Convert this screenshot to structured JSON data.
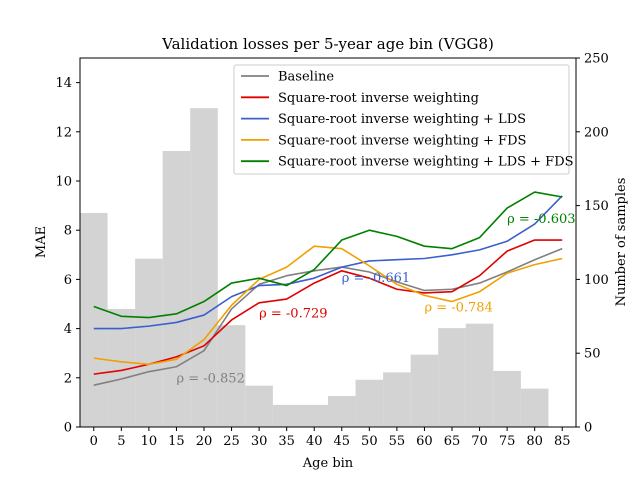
{
  "chart_data": {
    "type": "line",
    "title": "Validation losses per 5-year age bin (VGG8)",
    "xlabel": "Age bin",
    "ylabel": "MAE",
    "y2label": "Number of samples",
    "categories": [
      "0",
      "5",
      "10",
      "15",
      "20",
      "25",
      "30",
      "35",
      "40",
      "45",
      "50",
      "55",
      "60",
      "65",
      "70",
      "75",
      "80",
      "85"
    ],
    "x": [
      0,
      5,
      10,
      15,
      20,
      25,
      30,
      35,
      40,
      45,
      50,
      55,
      60,
      65,
      70,
      75,
      80,
      85
    ],
    "xlim": [
      -2.5,
      87.5
    ],
    "ylim": [
      0,
      15
    ],
    "y2lim": [
      0,
      250
    ],
    "yticks": [
      0,
      2,
      4,
      6,
      8,
      10,
      12,
      14
    ],
    "y2ticks": [
      0,
      50,
      100,
      150,
      200,
      250
    ],
    "grid": false,
    "legend_position": "upper-right",
    "histogram": {
      "color": "#d3d3d3",
      "counts": [
        145,
        80,
        114,
        187,
        216,
        69,
        28,
        15,
        15,
        21,
        32,
        37,
        49,
        67,
        70,
        38,
        26,
        0
      ]
    },
    "series": [
      {
        "name": "Baseline",
        "color": "#808080",
        "values": [
          1.7,
          1.95,
          2.25,
          2.45,
          3.1,
          4.8,
          5.8,
          6.15,
          6.35,
          6.5,
          6.3,
          5.9,
          5.55,
          5.6,
          5.85,
          6.3,
          6.8,
          7.25
        ]
      },
      {
        "name": "Square-root inverse weighting",
        "color": "#e00000",
        "values": [
          2.15,
          2.3,
          2.55,
          2.85,
          3.3,
          4.35,
          5.05,
          5.2,
          5.85,
          6.35,
          6.05,
          5.6,
          5.45,
          5.5,
          6.15,
          7.15,
          7.6,
          7.6
        ]
      },
      {
        "name": "Square-root inverse weighting + LDS",
        "color": "#3b5fcc",
        "values": [
          4.0,
          4.0,
          4.1,
          4.25,
          4.55,
          5.3,
          5.75,
          5.8,
          6.05,
          6.5,
          6.75,
          6.8,
          6.85,
          7.0,
          7.2,
          7.55,
          8.25,
          9.4
        ]
      },
      {
        "name": "Square-root inverse weighting + FDS",
        "color": "#f0a000",
        "values": [
          2.8,
          2.65,
          2.55,
          2.75,
          3.55,
          4.95,
          6.0,
          6.5,
          7.35,
          7.25,
          6.55,
          5.8,
          5.35,
          5.1,
          5.5,
          6.25,
          6.6,
          6.85
        ]
      },
      {
        "name": "Square-root inverse weighting + LDS + FDS",
        "color": "#008000",
        "values": [
          4.9,
          4.5,
          4.45,
          4.6,
          5.1,
          5.85,
          6.05,
          5.75,
          6.4,
          7.6,
          8.0,
          7.75,
          7.35,
          7.25,
          7.7,
          8.9,
          9.55,
          9.35
        ]
      }
    ],
    "annotations": [
      {
        "text": "ρ = -0.852",
        "x": 15.0,
        "y": 1.8,
        "color": "#808080"
      },
      {
        "text": "ρ = -0.729",
        "x": 30.0,
        "y": 4.45,
        "color": "#e00000"
      },
      {
        "text": "ρ = -0.661",
        "x": 45.0,
        "y": 5.9,
        "color": "#3b5fcc"
      },
      {
        "text": "ρ = -0.784",
        "x": 60.0,
        "y": 4.7,
        "color": "#f0a000"
      },
      {
        "text": "ρ = -0.603",
        "x": 75.0,
        "y": 8.3,
        "color": "#008000"
      }
    ]
  }
}
